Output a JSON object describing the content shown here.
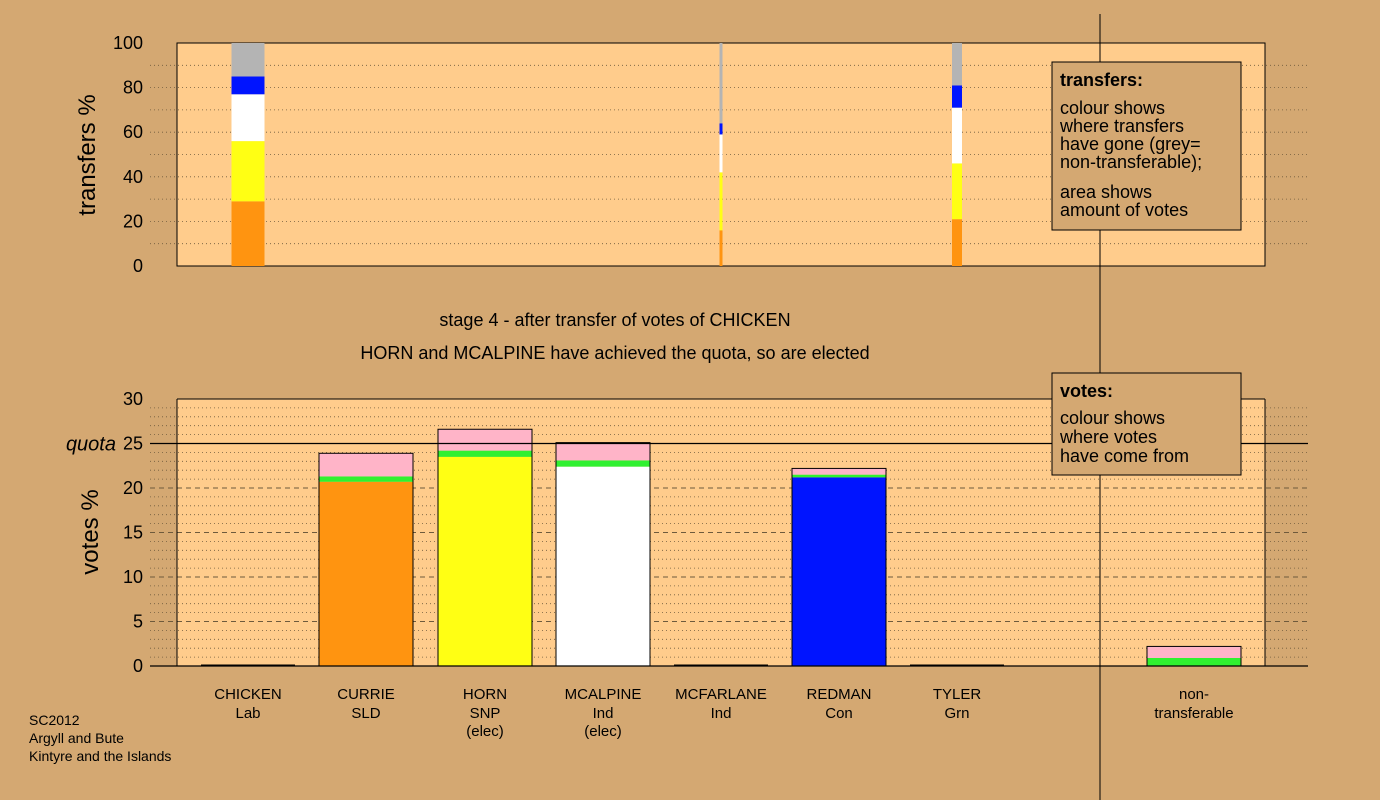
{
  "chart_data": [
    {
      "type": "bar",
      "name": "transfers",
      "ylabel": "transfers %",
      "ylim": [
        0,
        100
      ],
      "ticks": [
        "0",
        "20",
        "40",
        "60",
        "80",
        "100"
      ],
      "columns": [
        {
          "candidate_index": 0,
          "segments": [
            {
              "color": "#ff9410",
              "value": 29
            },
            {
              "color": "#ffff14",
              "value": 27
            },
            {
              "color": "#ffffff",
              "value": 21
            },
            {
              "color": "#0014ff",
              "value": 8
            },
            {
              "color": "#b4b4b4",
              "value": 15
            }
          ]
        },
        {
          "candidate_index": 4,
          "segments": [
            {
              "color": "#ff9410",
              "value": 16
            },
            {
              "color": "#ffff14",
              "value": 26
            },
            {
              "color": "#ffffff",
              "value": 17
            },
            {
              "color": "#0014ff",
              "value": 5
            },
            {
              "color": "#b4b4b4",
              "value": 36
            }
          ]
        },
        {
          "candidate_index": 6,
          "segments": [
            {
              "color": "#ff9410",
              "value": 21
            },
            {
              "color": "#ffff14",
              "value": 25
            },
            {
              "color": "#ffffff",
              "value": 25
            },
            {
              "color": "#0014ff",
              "value": 10
            },
            {
              "color": "#b4b4b4",
              "value": 19
            }
          ]
        }
      ],
      "legend": {
        "title": "transfers:",
        "lines": [
          "colour shows",
          "where transfers",
          "have gone (grey=",
          "non-transferable);",
          "area shows",
          "amount of votes"
        ]
      }
    },
    {
      "type": "bar",
      "name": "votes",
      "ylabel": "votes %",
      "ylim": [
        0,
        30
      ],
      "ticks": [
        "0",
        "5",
        "10",
        "15",
        "20",
        "25",
        "30"
      ],
      "quota": 25,
      "quota_label": "quota",
      "columns": [
        {
          "candidate_index": 1,
          "segments": [
            {
              "color": "#ff9410",
              "value": 20.7
            },
            {
              "color": "#30f030",
              "value": 0.6
            },
            {
              "color": "#ffb4c8",
              "value": 2.6
            }
          ]
        },
        {
          "candidate_index": 2,
          "segments": [
            {
              "color": "#ffff14",
              "value": 23.5
            },
            {
              "color": "#30f030",
              "value": 0.7
            },
            {
              "color": "#ffb4c8",
              "value": 2.4
            }
          ]
        },
        {
          "candidate_index": 3,
          "segments": [
            {
              "color": "#ffffff",
              "value": 22.4
            },
            {
              "color": "#30f030",
              "value": 0.7
            },
            {
              "color": "#ffb4c8",
              "value": 2.0
            }
          ]
        },
        {
          "candidate_index": 5,
          "segments": [
            {
              "color": "#0014ff",
              "value": 21.2
            },
            {
              "color": "#30f030",
              "value": 0.3
            },
            {
              "color": "#ffb4c8",
              "value": 0.7
            }
          ]
        },
        {
          "candidate_index": 7,
          "segments": [
            {
              "color": "#30f030",
              "value": 0.9
            },
            {
              "color": "#ffb4c8",
              "value": 1.3
            }
          ]
        }
      ],
      "legend": {
        "title": "votes:",
        "lines": [
          "colour shows",
          "where votes",
          "have come from"
        ]
      }
    }
  ],
  "candidates": [
    {
      "name": "CHICKEN",
      "party": "Lab",
      "note": ""
    },
    {
      "name": "CURRIE",
      "party": "SLD",
      "note": ""
    },
    {
      "name": "HORN",
      "party": "SNP",
      "note": "(elec)"
    },
    {
      "name": "MCALPINE",
      "party": "Ind",
      "note": "(elec)"
    },
    {
      "name": "MCFARLANE",
      "party": "Ind",
      "note": ""
    },
    {
      "name": "REDMAN",
      "party": "Con",
      "note": ""
    },
    {
      "name": "TYLER",
      "party": "Grn",
      "note": ""
    },
    {
      "name": "non-",
      "party": "transferable",
      "note": ""
    }
  ],
  "captions": {
    "line1": "stage 4 - after transfer of votes of CHICKEN",
    "line2": "HORN and MCALPINE have achieved the quota, so are elected"
  },
  "footer": {
    "line1": "SC2012",
    "line2": "Argyll and Bute",
    "line3": "Kintyre and the Islands"
  },
  "colors": {
    "background": "#d4a872",
    "plot_bg": "#ffcc8c",
    "legend_bg": "#d4a872"
  }
}
